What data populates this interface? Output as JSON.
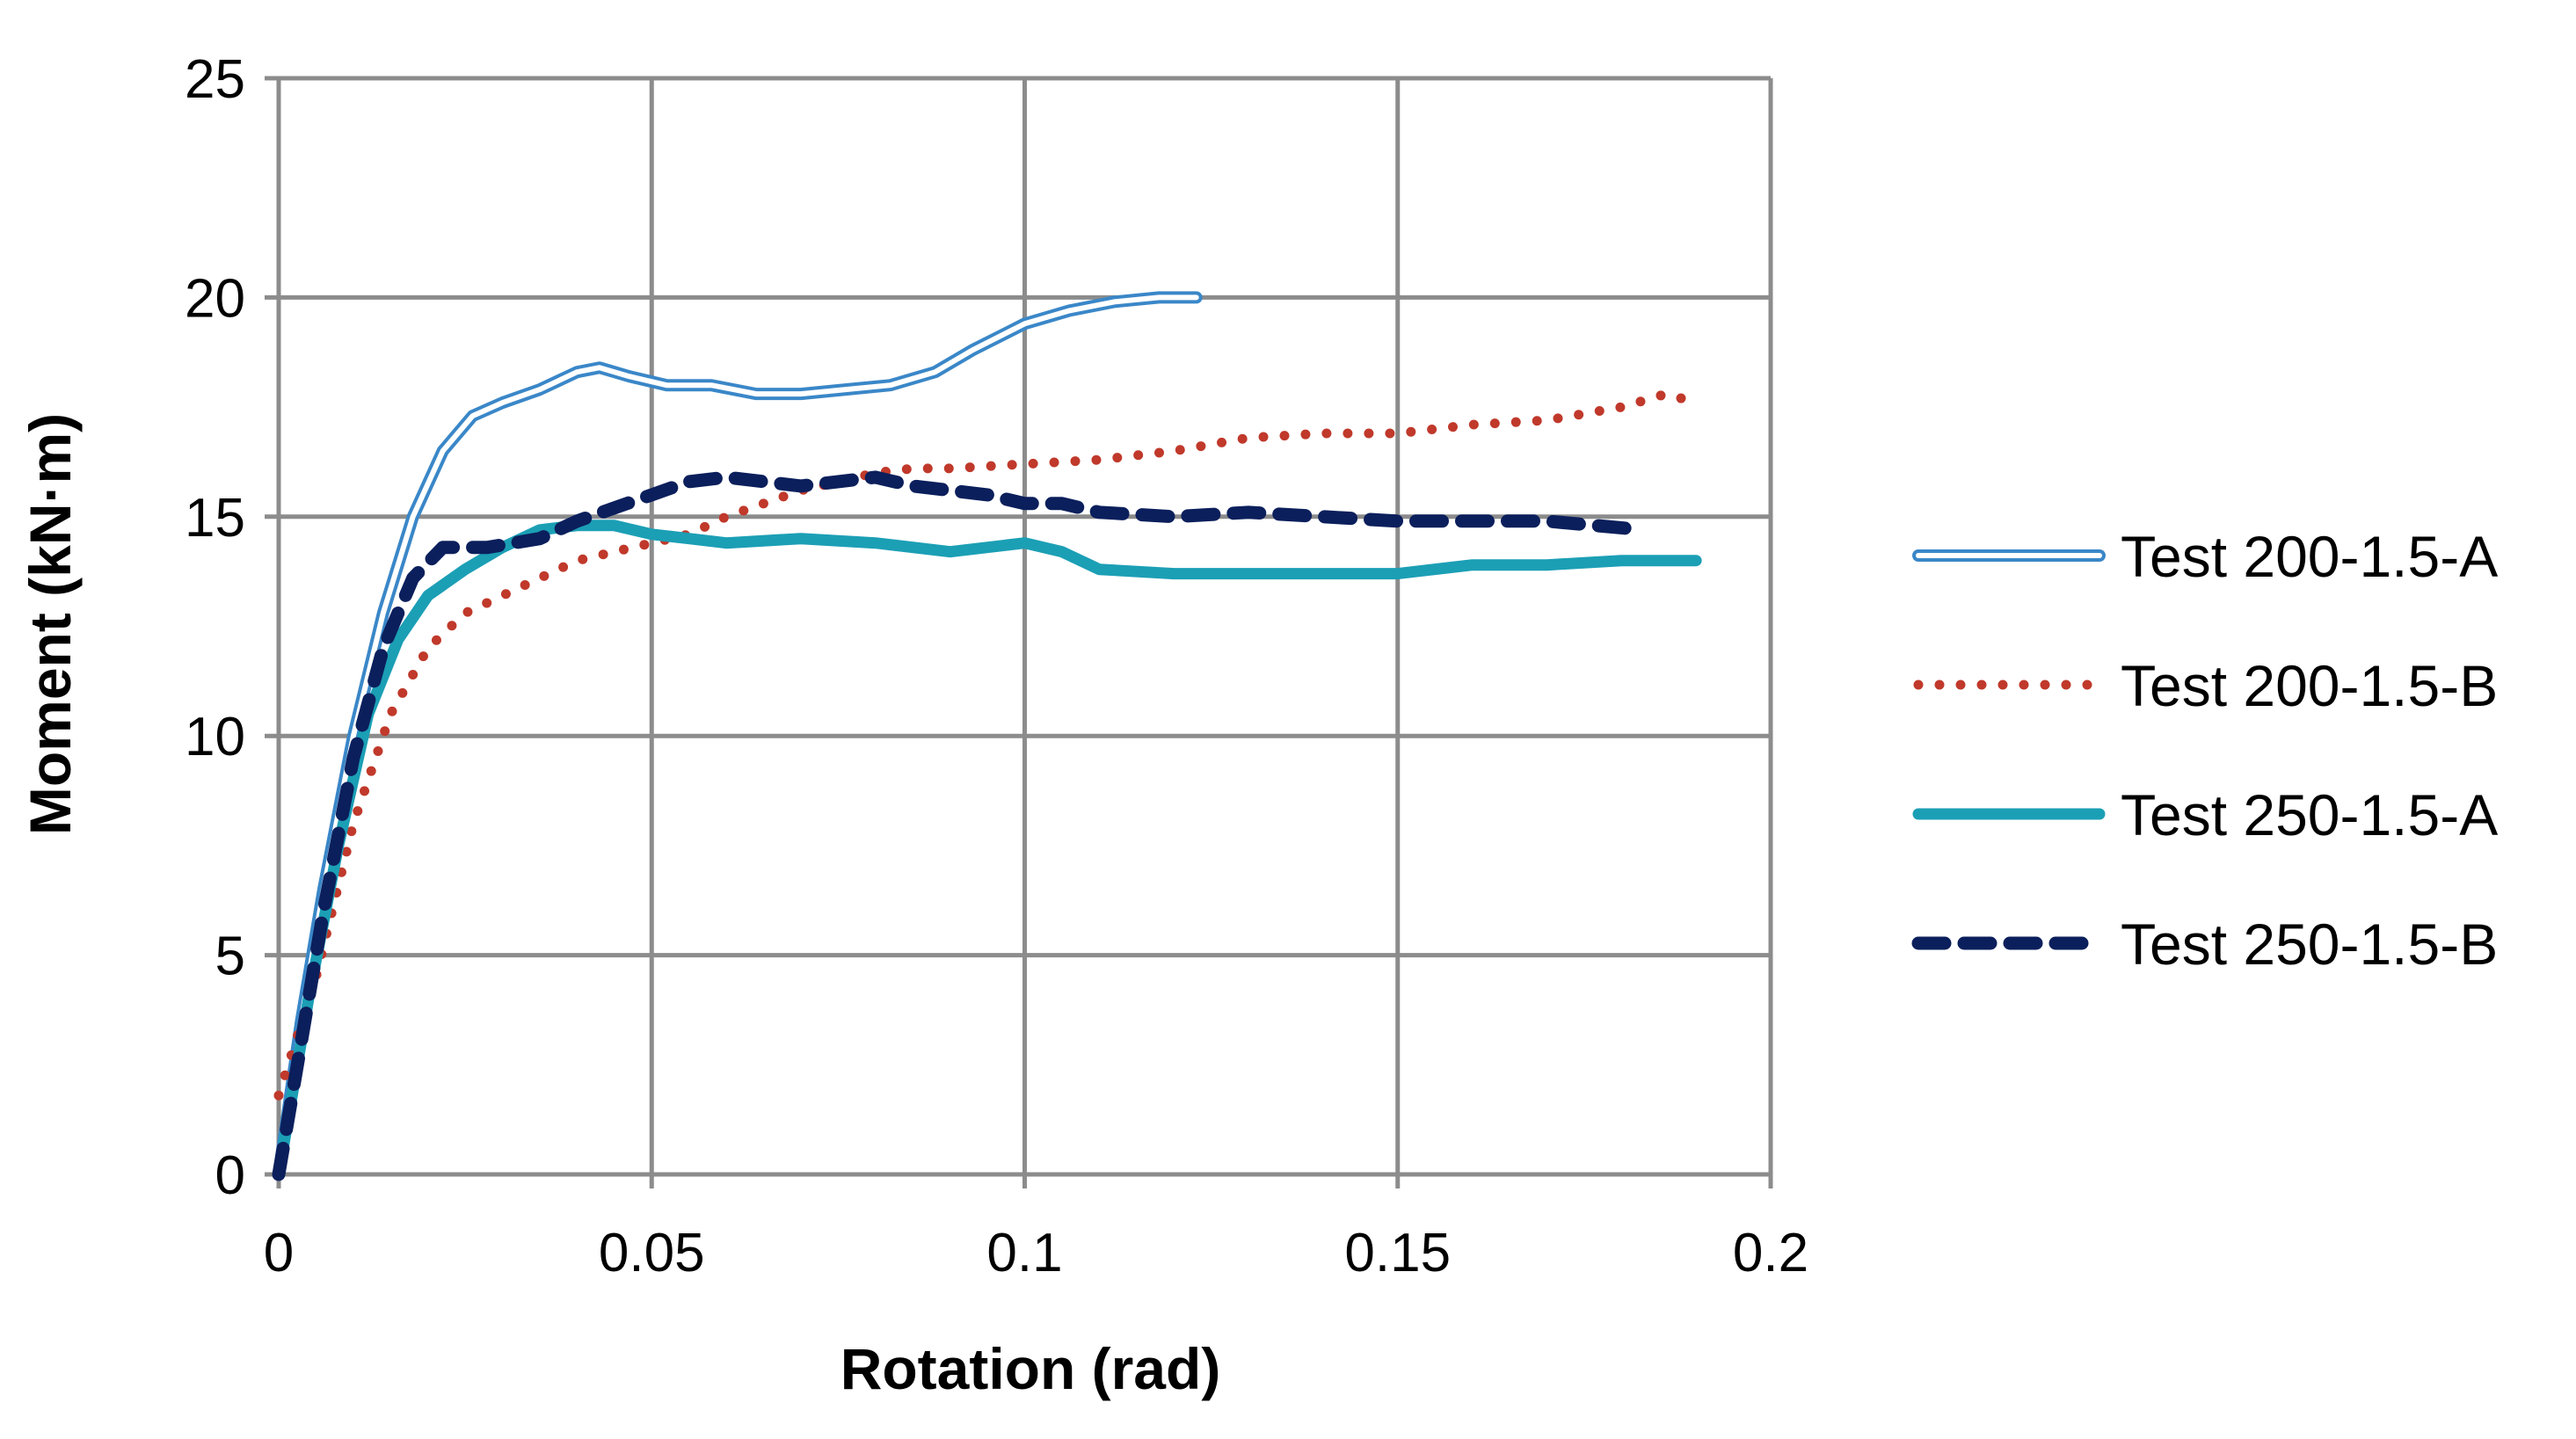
{
  "chart_data": {
    "type": "line",
    "title": "",
    "xlabel": "Rotation (rad)",
    "ylabel": "Moment (kN·m)",
    "xlim": [
      0,
      0.2
    ],
    "ylim": [
      0,
      25
    ],
    "x_ticks": [
      0,
      0.05,
      0.1,
      0.15,
      0.2
    ],
    "x_tick_labels": [
      "0",
      "0.05",
      "0.1",
      "0.15",
      "0.2"
    ],
    "y_ticks": [
      0,
      5,
      10,
      15,
      20,
      25
    ],
    "y_tick_labels": [
      "0",
      "5",
      "10",
      "15",
      "20",
      "25"
    ],
    "grid": true,
    "legend_position": "right",
    "series": [
      {
        "name": "Test 200-1.5-A",
        "style": "double",
        "color": "#3a87c8",
        "points": [
          [
            0,
            0
          ],
          [
            0.003,
            3.5
          ],
          [
            0.006,
            6.5
          ],
          [
            0.01,
            10
          ],
          [
            0.014,
            12.8
          ],
          [
            0.018,
            15
          ],
          [
            0.022,
            16.5
          ],
          [
            0.026,
            17.3
          ],
          [
            0.03,
            17.6
          ],
          [
            0.035,
            17.9
          ],
          [
            0.04,
            18.3
          ],
          [
            0.043,
            18.4
          ],
          [
            0.047,
            18.2
          ],
          [
            0.052,
            18
          ],
          [
            0.058,
            18
          ],
          [
            0.064,
            17.8
          ],
          [
            0.07,
            17.8
          ],
          [
            0.076,
            17.9
          ],
          [
            0.082,
            18
          ],
          [
            0.088,
            18.3
          ],
          [
            0.093,
            18.8
          ],
          [
            0.1,
            19.4
          ],
          [
            0.106,
            19.7
          ],
          [
            0.112,
            19.9
          ],
          [
            0.118,
            20
          ],
          [
            0.123,
            20
          ]
        ]
      },
      {
        "name": "Test 200-1.5-B",
        "style": "dotted",
        "color": "#c0392b",
        "points": [
          [
            0,
            1.8
          ],
          [
            0.005,
            4.5
          ],
          [
            0.01,
            8
          ],
          [
            0.015,
            10.5
          ],
          [
            0.02,
            12
          ],
          [
            0.025,
            12.8
          ],
          [
            0.03,
            13.2
          ],
          [
            0.035,
            13.6
          ],
          [
            0.04,
            14
          ],
          [
            0.045,
            14.2
          ],
          [
            0.05,
            14.4
          ],
          [
            0.055,
            14.6
          ],
          [
            0.06,
            15
          ],
          [
            0.065,
            15.3
          ],
          [
            0.07,
            15.6
          ],
          [
            0.075,
            15.8
          ],
          [
            0.08,
            16
          ],
          [
            0.085,
            16.1
          ],
          [
            0.09,
            16.1
          ],
          [
            0.1,
            16.2
          ],
          [
            0.11,
            16.3
          ],
          [
            0.12,
            16.5
          ],
          [
            0.13,
            16.8
          ],
          [
            0.14,
            16.9
          ],
          [
            0.15,
            16.9
          ],
          [
            0.16,
            17.1
          ],
          [
            0.17,
            17.2
          ],
          [
            0.18,
            17.5
          ],
          [
            0.186,
            17.8
          ],
          [
            0.19,
            17.6
          ]
        ]
      },
      {
        "name": "Test 250-1.5-A",
        "style": "solid",
        "color": "#1b9fb5",
        "points": [
          [
            0,
            0
          ],
          [
            0.004,
            4
          ],
          [
            0.008,
            7.5
          ],
          [
            0.012,
            10.5
          ],
          [
            0.016,
            12.2
          ],
          [
            0.02,
            13.2
          ],
          [
            0.025,
            13.8
          ],
          [
            0.03,
            14.3
          ],
          [
            0.035,
            14.7
          ],
          [
            0.04,
            14.8
          ],
          [
            0.045,
            14.8
          ],
          [
            0.05,
            14.6
          ],
          [
            0.055,
            14.5
          ],
          [
            0.06,
            14.4
          ],
          [
            0.07,
            14.5
          ],
          [
            0.08,
            14.4
          ],
          [
            0.09,
            14.2
          ],
          [
            0.1,
            14.4
          ],
          [
            0.105,
            14.2
          ],
          [
            0.11,
            13.8
          ],
          [
            0.12,
            13.7
          ],
          [
            0.13,
            13.7
          ],
          [
            0.14,
            13.7
          ],
          [
            0.15,
            13.7
          ],
          [
            0.16,
            13.9
          ],
          [
            0.17,
            13.9
          ],
          [
            0.18,
            14
          ],
          [
            0.19,
            14
          ]
        ]
      },
      {
        "name": "Test 250-1.5-B",
        "style": "dashed",
        "color": "#0b1f5c",
        "points": [
          [
            0,
            0
          ],
          [
            0.003,
            3
          ],
          [
            0.006,
            6
          ],
          [
            0.01,
            9.5
          ],
          [
            0.014,
            12
          ],
          [
            0.018,
            13.6
          ],
          [
            0.022,
            14.3
          ],
          [
            0.028,
            14.3
          ],
          [
            0.035,
            14.5
          ],
          [
            0.04,
            14.9
          ],
          [
            0.045,
            15.2
          ],
          [
            0.05,
            15.5
          ],
          [
            0.055,
            15.8
          ],
          [
            0.06,
            15.9
          ],
          [
            0.065,
            15.8
          ],
          [
            0.07,
            15.7
          ],
          [
            0.075,
            15.8
          ],
          [
            0.08,
            15.9
          ],
          [
            0.085,
            15.7
          ],
          [
            0.09,
            15.6
          ],
          [
            0.095,
            15.5
          ],
          [
            0.1,
            15.3
          ],
          [
            0.105,
            15.3
          ],
          [
            0.11,
            15.1
          ],
          [
            0.12,
            15
          ],
          [
            0.13,
            15.1
          ],
          [
            0.14,
            15
          ],
          [
            0.15,
            14.9
          ],
          [
            0.16,
            14.9
          ],
          [
            0.17,
            14.9
          ],
          [
            0.183,
            14.7
          ]
        ]
      }
    ]
  }
}
